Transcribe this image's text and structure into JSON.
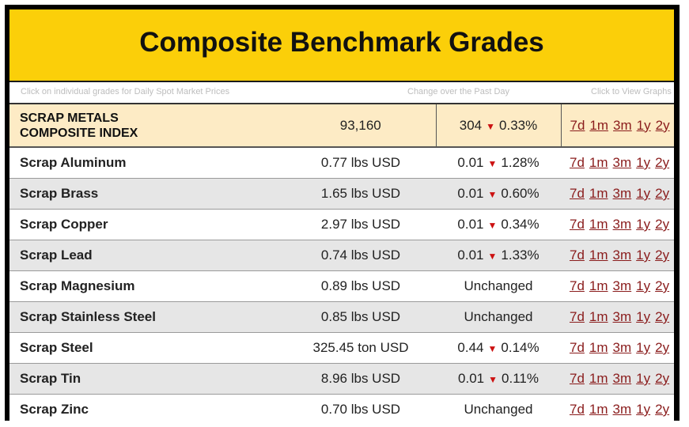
{
  "banner": {
    "title": "Composite Benchmark Grades"
  },
  "hints": {
    "click_grades": "Click on individual grades for Daily Spot Market Prices",
    "change_past_day": "Change over the Past Day",
    "click_graph": "Click to View Graphs"
  },
  "composite": {
    "name_line1": "SCRAP METALS",
    "name_line2": "COMPOSITE INDEX",
    "value": "93,160",
    "change_amount": "304",
    "change_pct": "0.33%",
    "direction": "down"
  },
  "period_links": [
    "7d",
    "1m",
    "3m",
    "1y",
    "2y"
  ],
  "down_arrow": "▼",
  "rows": [
    {
      "name": "Scrap Aluminum",
      "price": "0.77 lbs USD",
      "change_amount": "0.01",
      "change_pct": "1.28%",
      "change_text": "",
      "direction": "down"
    },
    {
      "name": "Scrap Brass",
      "price": "1.65 lbs USD",
      "change_amount": "0.01",
      "change_pct": "0.60%",
      "change_text": "",
      "direction": "down"
    },
    {
      "name": "Scrap Copper",
      "price": "2.97 lbs USD",
      "change_amount": "0.01",
      "change_pct": "0.34%",
      "change_text": "",
      "direction": "down"
    },
    {
      "name": "Scrap Lead",
      "price": "0.74 lbs USD",
      "change_amount": "0.01",
      "change_pct": "1.33%",
      "change_text": "",
      "direction": "down"
    },
    {
      "name": "Scrap Magnesium",
      "price": "0.89 lbs USD",
      "change_amount": "",
      "change_pct": "",
      "change_text": "Unchanged",
      "direction": "none"
    },
    {
      "name": "Scrap Stainless Steel",
      "price": "0.85 lbs USD",
      "change_amount": "",
      "change_pct": "",
      "change_text": "Unchanged",
      "direction": "none"
    },
    {
      "name": "Scrap Steel",
      "price": "325.45 ton USD",
      "change_amount": "0.44",
      "change_pct": "0.14%",
      "change_text": "",
      "direction": "down"
    },
    {
      "name": "Scrap Tin",
      "price": "8.96 lbs USD",
      "change_amount": "0.01",
      "change_pct": "0.11%",
      "change_text": "",
      "direction": "down"
    },
    {
      "name": "Scrap Zinc",
      "price": "0.70 lbs USD",
      "change_amount": "",
      "change_pct": "",
      "change_text": "Unchanged",
      "direction": "none"
    }
  ],
  "colors": {
    "banner_bg": "#fbcf09",
    "composite_bg": "#fdebc5",
    "shaded_row_bg": "#e6e6e6",
    "grade_name": "#b5121b",
    "down_arrow": "#cc1111",
    "link": "#8a1c1c"
  }
}
